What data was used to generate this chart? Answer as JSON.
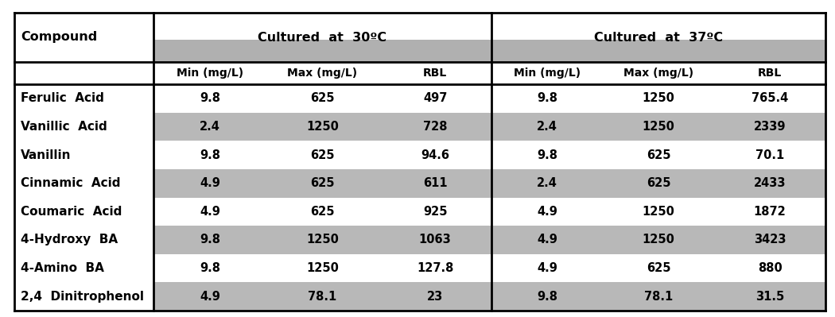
{
  "compounds": [
    "Ferulic  Acid",
    "Vanillic  Acid",
    "Vanillin",
    "Cinnamic  Acid",
    "Coumaric  Acid",
    "4-Hydroxy  BA",
    "4-Amino  BA",
    "2,4  Dinitrophenol"
  ],
  "col30": [
    [
      "9.8",
      "625",
      "497"
    ],
    [
      "2.4",
      "1250",
      "728"
    ],
    [
      "9.8",
      "625",
      "94.6"
    ],
    [
      "4.9",
      "625",
      "611"
    ],
    [
      "4.9",
      "625",
      "925"
    ],
    [
      "9.8",
      "1250",
      "1063"
    ],
    [
      "9.8",
      "1250",
      "127.8"
    ],
    [
      "4.9",
      "78.1",
      "23"
    ]
  ],
  "col37": [
    [
      "9.8",
      "1250",
      "765.4"
    ],
    [
      "2.4",
      "1250",
      "2339"
    ],
    [
      "9.8",
      "625",
      "70.1"
    ],
    [
      "2.4",
      "625",
      "2433"
    ],
    [
      "4.9",
      "1250",
      "1872"
    ],
    [
      "4.9",
      "1250",
      "3423"
    ],
    [
      "4.9",
      "625",
      "880"
    ],
    [
      "9.8",
      "78.1",
      "31.5"
    ]
  ],
  "header_30": "Cultured  at  30ºC",
  "header_37": "Cultured  at  37ºC",
  "subheaders": [
    "Min (mg/L)",
    "Max (mg/L)",
    "RBL"
  ],
  "compound_label": "Compound",
  "bg_white": "#ffffff",
  "bg_gray": "#b8b8b8",
  "bg_subheader": "#b0b0b0",
  "text_color": "#000000",
  "line_color": "#000000",
  "fig_width": 10.5,
  "fig_height": 3.99,
  "dpi": 100
}
